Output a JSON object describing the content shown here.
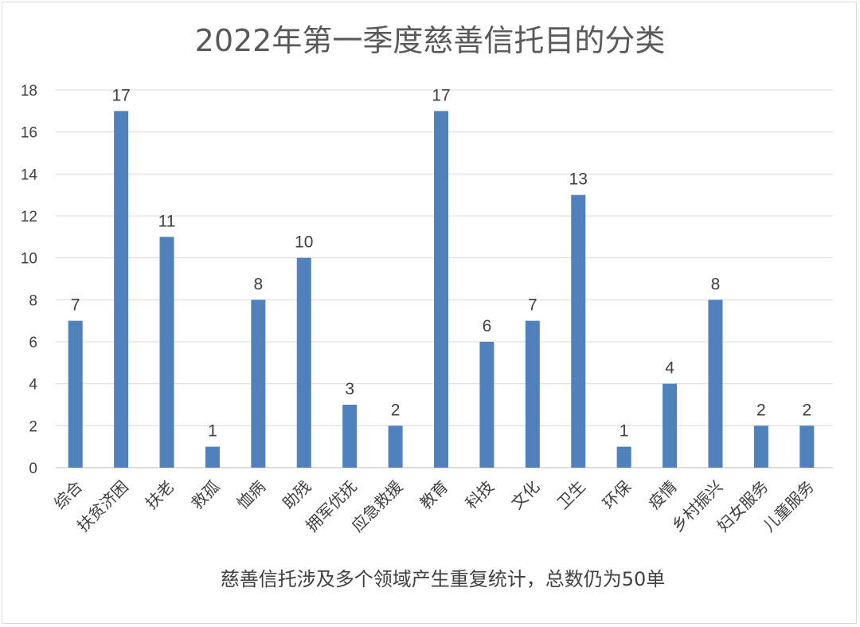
{
  "chart_data": {
    "type": "bar",
    "title": "2022年第一季度慈善信托目的分类",
    "footnote": "慈善信托涉及多个领域产生重复统计，总数仍为50单",
    "categories": [
      "综合",
      "扶贫济困",
      "扶老",
      "救孤",
      "恤病",
      "助残",
      "拥军优抚",
      "应急救援",
      "教育",
      "科技",
      "文化",
      "卫生",
      "环保",
      "疫情",
      "乡村振兴",
      "妇女服务",
      "儿童服务"
    ],
    "values": [
      7,
      17,
      11,
      1,
      8,
      10,
      3,
      2,
      17,
      6,
      7,
      13,
      1,
      4,
      8,
      2,
      2
    ],
    "ylim": [
      0,
      18
    ],
    "yticks": [
      0,
      2,
      4,
      6,
      8,
      10,
      12,
      14,
      16,
      18
    ],
    "grid": true,
    "legend": "none",
    "bar_color": "#4f81bd"
  }
}
